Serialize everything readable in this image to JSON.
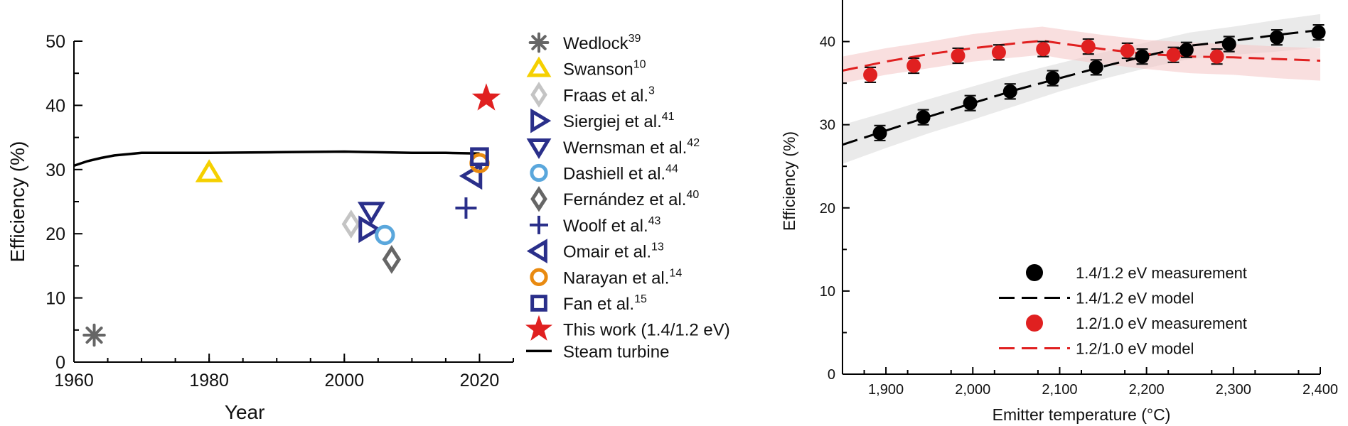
{
  "chart_data": [
    {
      "type": "scatter",
      "xlabel": "Year",
      "ylabel": "Efficiency (%)",
      "xlim": [
        1960,
        2025
      ],
      "ylim": [
        0,
        50
      ],
      "xticks": [
        "1960",
        "1980",
        "2000",
        "2020"
      ],
      "yticks": [
        "0",
        "10",
        "20",
        "30",
        "40",
        "50"
      ],
      "series": [
        {
          "name": "Wedlock",
          "ref": "39",
          "marker": "asterisk",
          "color": "#666666",
          "points": [
            [
              1963,
              4.2
            ]
          ]
        },
        {
          "name": "Swanson",
          "ref": "10",
          "marker": "triangle-up",
          "color": "#f5d000",
          "points": [
            [
              1980,
              29.5
            ]
          ]
        },
        {
          "name": "Fraas et al.",
          "ref": "3",
          "marker": "diamond",
          "color": "#c4c4c4",
          "points": [
            [
              2001,
              21.5
            ]
          ]
        },
        {
          "name": "Siergiej et al.",
          "ref": "41",
          "marker": "triangle-right",
          "color": "#2a2f8a",
          "points": [
            [
              2003.5,
              20.7
            ]
          ]
        },
        {
          "name": "Wernsman et al.",
          "ref": "42",
          "marker": "triangle-down",
          "color": "#2a2f8a",
          "points": [
            [
              2004,
              23.5
            ]
          ]
        },
        {
          "name": "Dashiell et al.",
          "ref": "44",
          "marker": "circle",
          "color": "#5aa7dc",
          "points": [
            [
              2006,
              19.8
            ]
          ]
        },
        {
          "name": "Fernández et al.",
          "ref": "40",
          "marker": "diamond",
          "color": "#666666",
          "points": [
            [
              2007,
              16
            ]
          ]
        },
        {
          "name": "Woolf et al.",
          "ref": "43",
          "marker": "plus",
          "color": "#2a2f8a",
          "points": [
            [
              2018,
              24
            ]
          ]
        },
        {
          "name": "Omair et al.",
          "ref": "13",
          "marker": "triangle-left",
          "color": "#2a2f8a",
          "points": [
            [
              2019,
              29
            ]
          ]
        },
        {
          "name": "Narayan et al.",
          "ref": "14",
          "marker": "circle",
          "color": "#e98a10",
          "points": [
            [
              2020,
              31
            ]
          ]
        },
        {
          "name": "Fan et al.",
          "ref": "15",
          "marker": "square",
          "color": "#2a2f8a",
          "points": [
            [
              2020,
              32
            ]
          ]
        },
        {
          "name": "This work (1.4/1.2 eV)",
          "ref": "",
          "marker": "star",
          "color": "#e02020",
          "points": [
            [
              2021,
              41.1
            ]
          ]
        }
      ],
      "line": {
        "name": "Steam turbine",
        "color": "#000000",
        "x": [
          1960,
          1962,
          1964,
          1966,
          1968,
          1970,
          1975,
          1980,
          1990,
          2000,
          2005,
          2010,
          2015,
          2020
        ],
        "y": [
          30.6,
          31.3,
          31.8,
          32.2,
          32.4,
          32.6,
          32.6,
          32.6,
          32.7,
          32.8,
          32.7,
          32.6,
          32.6,
          32.5
        ]
      },
      "legend": "right"
    },
    {
      "type": "scatter",
      "xlabel": "Emitter temperature (°C)",
      "ylabel": "Efficiency (%)",
      "xlim": [
        1850,
        2400
      ],
      "ylim": [
        0,
        45
      ],
      "xticks": [
        "1,900",
        "2,000",
        "2,100",
        "2,200",
        "2,300",
        "2,400"
      ],
      "yticks": [
        "0",
        "10",
        "20",
        "30",
        "40"
      ],
      "measurements": [
        {
          "name": "1.4/1.2 eV measurement",
          "color": "#000000",
          "x": [
            1893,
            1943,
            1997,
            2043,
            2092,
            2142,
            2195,
            2246,
            2295,
            2350,
            2398
          ],
          "y": [
            29,
            30.9,
            32.6,
            34,
            35.6,
            36.9,
            38.2,
            39,
            39.7,
            40.5,
            41.1
          ],
          "err": [
            0.9,
            0.9,
            0.9,
            0.9,
            0.9,
            0.9,
            0.9,
            0.9,
            0.9,
            0.9,
            0.9
          ]
        },
        {
          "name": "1.2/1.0 eV measurement",
          "color": "#e02020",
          "x": [
            1882,
            1932,
            1983,
            2030,
            2081,
            2133,
            2178,
            2231,
            2281
          ],
          "y": [
            36,
            37.1,
            38.3,
            38.7,
            39.1,
            39.4,
            38.9,
            38.4,
            38.2
          ],
          "err": [
            0.9,
            0.9,
            0.9,
            0.9,
            0.9,
            0.9,
            0.9,
            0.9,
            0.9
          ]
        }
      ],
      "models": [
        {
          "name": "1.4/1.2 eV model",
          "color": "#000000",
          "band_color": "#d9d9d9",
          "x": [
            1850,
            1900,
            1950,
            2000,
            2050,
            2100,
            2150,
            2200,
            2250,
            2300,
            2350,
            2400
          ],
          "y": [
            27.6,
            29.3,
            31.0,
            32.6,
            34.2,
            35.6,
            37.0,
            38.3,
            39.5,
            40.1,
            40.8,
            41.4
          ],
          "lower": [
            25.3,
            27.2,
            29.0,
            30.6,
            32.3,
            34.0,
            35.5,
            36.8,
            37.9,
            38.4,
            38.8,
            39.3
          ],
          "upper": [
            30.0,
            31.5,
            33.1,
            34.6,
            36.1,
            37.4,
            38.7,
            39.9,
            41.1,
            41.8,
            42.6,
            43.3
          ]
        },
        {
          "name": "1.2/1.0 eV model",
          "color": "#e02020",
          "band_color": "#f4c4c4",
          "x": [
            1850,
            1900,
            1950,
            2000,
            2050,
            2080,
            2100,
            2150,
            2200,
            2250,
            2300,
            2350,
            2400
          ],
          "y": [
            36.5,
            37.6,
            38.5,
            39.2,
            39.8,
            40.1,
            39.8,
            39.1,
            38.5,
            38.2,
            38.1,
            37.9,
            37.7
          ],
          "lower": [
            35.0,
            36.0,
            36.8,
            37.6,
            38.1,
            38.4,
            38.0,
            37.3,
            36.7,
            36.2,
            36.0,
            35.6,
            35.3
          ],
          "upper": [
            38.2,
            39.2,
            40.0,
            40.9,
            41.5,
            41.8,
            41.5,
            40.8,
            40.2,
            39.9,
            39.7,
            39.4,
            39.2
          ]
        }
      ],
      "legend": "bottom-right"
    }
  ]
}
